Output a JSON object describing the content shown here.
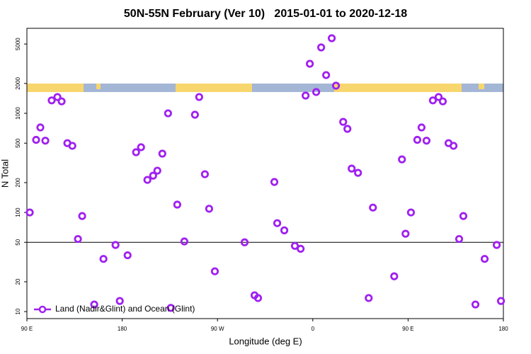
{
  "chart_data": {
    "type": "scatter",
    "title": "50N-55N February (Ver 10)   2015-01-01 to 2020-12-18",
    "x_label": "Longitude (deg E)",
    "y_label": "N Total",
    "log_y": true,
    "xlim": [
      90,
      540
    ],
    "ylim": [
      8.5,
      7200
    ],
    "xticks": [
      {
        "value": 90,
        "label": "90 E"
      },
      180,
      {
        "value": 270,
        "label": "90 W"
      },
      {
        "value": 360,
        "label": "0"
      },
      {
        "value": 450,
        "label": "90 E"
      },
      {
        "value": 540,
        "label": "180"
      }
    ],
    "yticks": [
      10,
      20,
      50,
      100,
      200,
      500,
      1000,
      2000,
      5000
    ],
    "reference_line": 50,
    "legend_position": "bottom-left",
    "series": [
      {
        "name": "Land (Nadir&Glint) and Ocean (Glint)",
        "color": "#a020f0",
        "x": [
          92.7,
          98.7,
          102.7,
          107.4,
          113.4,
          118.8,
          122.8,
          128.2,
          132.9,
          138.2,
          142.2,
          153.6,
          162.3,
          173.7,
          177.7,
          185.1,
          193.1,
          197.8,
          203.8,
          209.2,
          213.2,
          217.9,
          223.3,
          225.9,
          232.0,
          238.7,
          248.7,
          252.7,
          258.1,
          262.1,
          267.5,
          295.6,
          305.0,
          308.3,
          323.7,
          326.4,
          333.1,
          343.1,
          348.5,
          353.2,
          357.2,
          363.2,
          367.9,
          372.6,
          377.9,
          381.9,
          388.7,
          392.7,
          396.7,
          402.7,
          412.8,
          416.8,
          436.9,
          444.2,
          447.6,
          452.7,
          458.7,
          462.7,
          467.4,
          473.4,
          478.8,
          482.8,
          488.2,
          492.9,
          498.2,
          502.2,
          513.6,
          522.3,
          533.7,
          537.7
        ],
        "values": [
          100,
          540,
          720,
          530,
          1350,
          1460,
          1320,
          500,
          470,
          54,
          92,
          11.8,
          34,
          47,
          12.8,
          37,
          405,
          455,
          213,
          235,
          264,
          392,
          1000,
          10.9,
          120,
          51,
          968,
          1460,
          243,
          109,
          25.5,
          50,
          14.6,
          13.7,
          203,
          78,
          66,
          46,
          43,
          1510,
          3160,
          1640,
          4620,
          2430,
          5720,
          1900,
          820,
          697,
          277,
          251,
          13.7,
          112,
          22.7,
          343,
          61,
          100,
          540,
          720,
          530,
          1350,
          1460,
          1320,
          500,
          470,
          54,
          92,
          11.8,
          34,
          47,
          12.8
        ]
      }
    ]
  }
}
